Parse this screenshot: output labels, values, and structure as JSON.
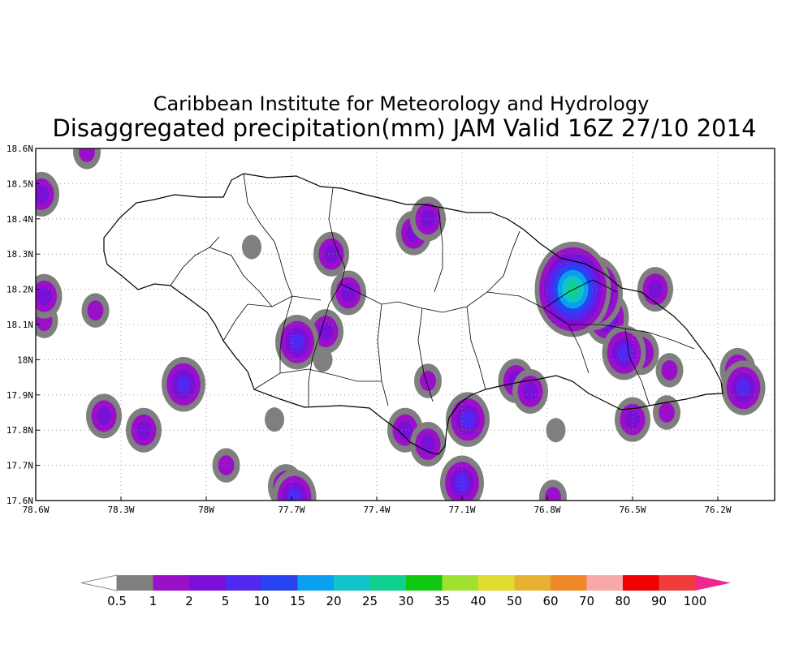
{
  "title": {
    "line1": "Caribbean Institute for Meteorology and Hydrology",
    "line2": "Disaggregated precipitation(mm) JAM Valid 16Z 27/10 2014"
  },
  "map": {
    "lon_range": [
      -78.6,
      -76.0
    ],
    "lat_range": [
      17.6,
      18.6
    ],
    "grid": true,
    "lon_ticks": [
      "78.6W",
      "78.3W",
      "78W",
      "77.7W",
      "77.4W",
      "77.1W",
      "76.8W",
      "76.5W",
      "76.2W"
    ],
    "lat_ticks": [
      "18.6N",
      "18.5N",
      "18.4N",
      "18.3N",
      "18.2N",
      "18.1N",
      "18N",
      "17.9N",
      "17.8N",
      "17.7N",
      "17.6N"
    ]
  },
  "colorbar": {
    "labels": [
      "0.5",
      "1",
      "2",
      "5",
      "10",
      "15",
      "20",
      "25",
      "30",
      "35",
      "40",
      "50",
      "60",
      "70",
      "80",
      "90",
      "100"
    ],
    "colors": [
      "#7f7f7f",
      "#9a10c8",
      "#7a10d8",
      "#5028f0",
      "#2844f0",
      "#0aa0f0",
      "#10c4c8",
      "#10d090",
      "#10c810",
      "#a0e030",
      "#e0dc30",
      "#e8b030",
      "#f08828",
      "#f8a8a8",
      "#f00000",
      "#f03c3c"
    ],
    "under_color": "#ffffff",
    "over_color": "#f0288c"
  },
  "precip_cells": [
    {
      "lon": -78.42,
      "lat": 18.59,
      "level": 1
    },
    {
      "lon": -78.58,
      "lat": 18.47,
      "level": 2
    },
    {
      "lon": -78.57,
      "lat": 18.18,
      "level": 2
    },
    {
      "lon": -78.57,
      "lat": 18.11,
      "level": 1
    },
    {
      "lon": -78.39,
      "lat": 18.14,
      "level": 1
    },
    {
      "lon": -78.08,
      "lat": 17.93,
      "level": 3
    },
    {
      "lon": -78.36,
      "lat": 17.84,
      "level": 2
    },
    {
      "lon": -78.22,
      "lat": 17.8,
      "level": 2
    },
    {
      "lon": -77.93,
      "lat": 17.7,
      "level": 1
    },
    {
      "lon": -77.72,
      "lat": 17.64,
      "level": 2
    },
    {
      "lon": -77.69,
      "lat": 17.61,
      "level": 3
    },
    {
      "lon": -77.84,
      "lat": 18.32,
      "level": 0
    },
    {
      "lon": -77.68,
      "lat": 18.05,
      "level": 3
    },
    {
      "lon": -77.58,
      "lat": 18.08,
      "level": 2
    },
    {
      "lon": -77.56,
      "lat": 18.3,
      "level": 2
    },
    {
      "lon": -77.5,
      "lat": 18.19,
      "level": 2
    },
    {
      "lon": -77.27,
      "lat": 18.36,
      "level": 2
    },
    {
      "lon": -77.22,
      "lat": 18.4,
      "level": 2
    },
    {
      "lon": -77.22,
      "lat": 17.94,
      "level": 1
    },
    {
      "lon": -77.3,
      "lat": 17.8,
      "level": 2
    },
    {
      "lon": -77.22,
      "lat": 17.76,
      "level": 2
    },
    {
      "lon": -77.08,
      "lat": 17.83,
      "level": 3
    },
    {
      "lon": -77.1,
      "lat": 17.65,
      "level": 3
    },
    {
      "lon": -76.91,
      "lat": 17.94,
      "level": 2
    },
    {
      "lon": -76.86,
      "lat": 17.91,
      "level": 2
    },
    {
      "lon": -76.71,
      "lat": 18.2,
      "level": 7
    },
    {
      "lon": -76.64,
      "lat": 18.19,
      "level": 5
    },
    {
      "lon": -76.59,
      "lat": 18.12,
      "level": 3
    },
    {
      "lon": -76.53,
      "lat": 18.02,
      "level": 3
    },
    {
      "lon": -76.47,
      "lat": 18.02,
      "level": 2
    },
    {
      "lon": -76.5,
      "lat": 17.83,
      "level": 2
    },
    {
      "lon": -76.38,
      "lat": 17.85,
      "level": 1
    },
    {
      "lon": -76.42,
      "lat": 18.2,
      "level": 2
    },
    {
      "lon": -76.37,
      "lat": 17.97,
      "level": 1
    },
    {
      "lon": -76.11,
      "lat": 17.92,
      "level": 3
    },
    {
      "lon": -76.13,
      "lat": 17.97,
      "level": 2
    },
    {
      "lon": -77.76,
      "lat": 17.83,
      "level": 0
    },
    {
      "lon": -77.59,
      "lat": 18.0,
      "level": 0
    },
    {
      "lon": -76.77,
      "lat": 17.8,
      "level": 0
    },
    {
      "lon": -76.78,
      "lat": 17.61,
      "level": 1
    }
  ]
}
